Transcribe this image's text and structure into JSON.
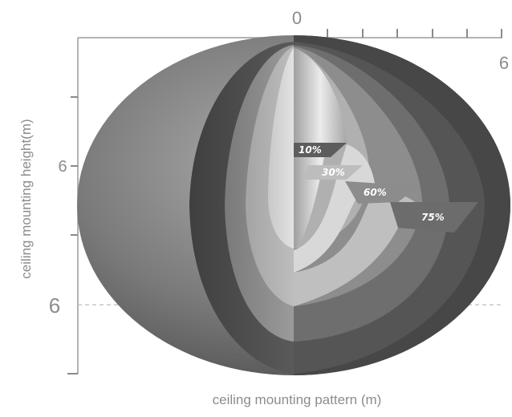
{
  "axes": {
    "x_label": "ceiling mounting pattern (m)",
    "y_label": "ceiling mounting height(m)",
    "x_zero_label": "0",
    "x_max_label": "6",
    "y_mark_label": "6",
    "y_secondary_label": "6"
  },
  "zones": [
    {
      "label": "10%",
      "color": "#dcdcdc"
    },
    {
      "label": "30%",
      "color": "#bdbdbd"
    },
    {
      "label": "60%",
      "color": "#8f8f8f"
    },
    {
      "label": "75%",
      "color": "#5e5e5e"
    }
  ],
  "colors": {
    "axis": "#9a9a9a",
    "dashed_line": "#bcbcbc",
    "outer_shell": "#6e6e6e",
    "inner_dark": "#4a4a4a"
  }
}
